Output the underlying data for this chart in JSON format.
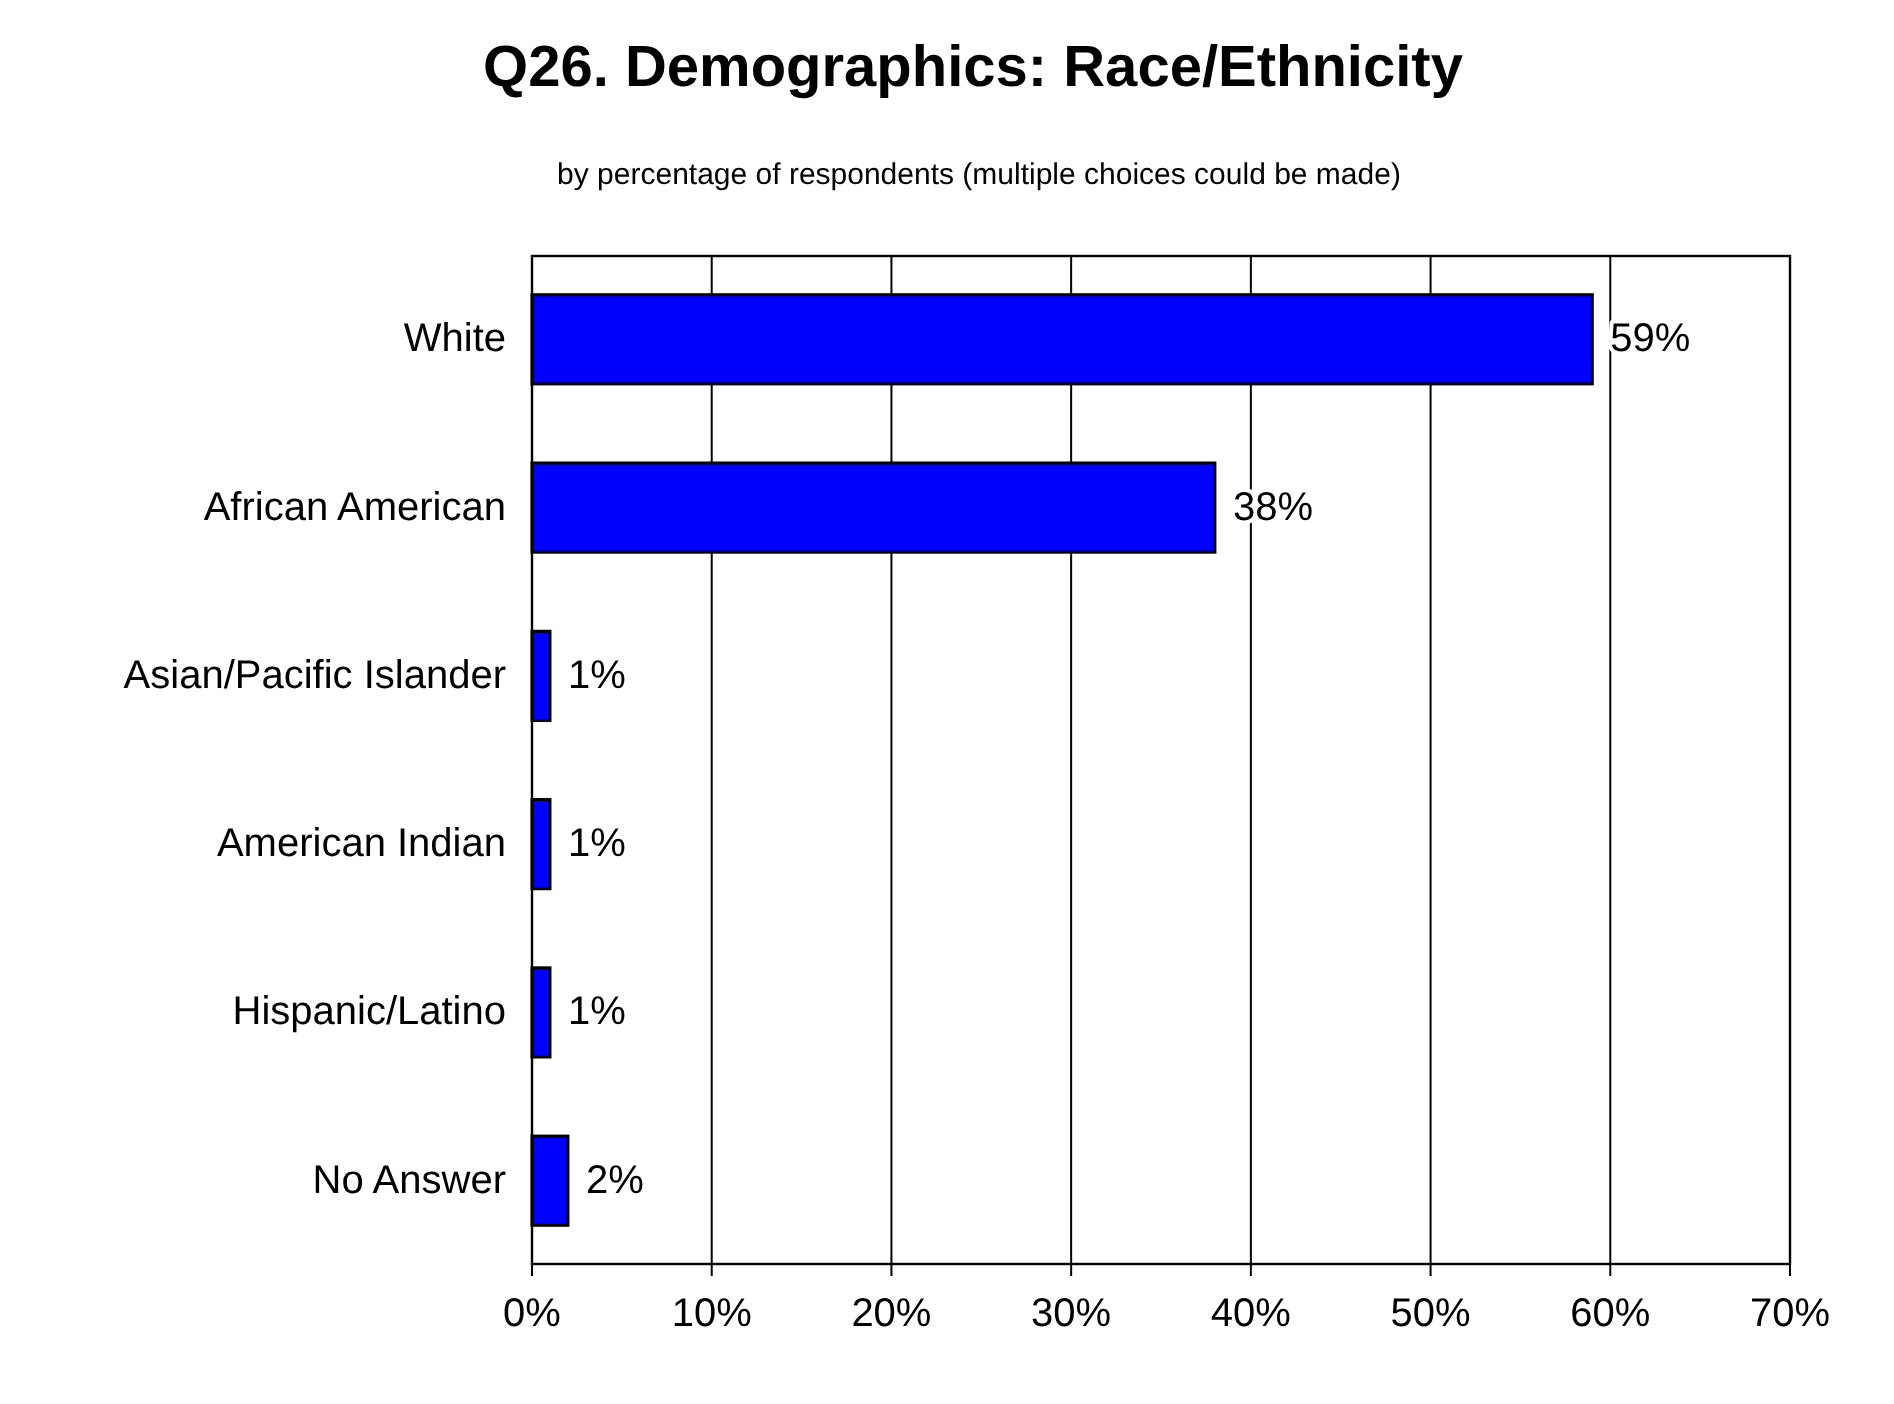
{
  "chart_data": {
    "type": "bar",
    "orientation": "horizontal",
    "title": "Q26. Demographics: Race/Ethnicity",
    "subtitle": "by percentage of respondents (multiple choices could be made)",
    "categories": [
      "White",
      "African American",
      "Asian/Pacific Islander",
      "American Indian",
      "Hispanic/Latino",
      "No Answer"
    ],
    "values": [
      59,
      38,
      1,
      1,
      1,
      2
    ],
    "color": "#0000ff",
    "xlim": [
      0,
      70
    ],
    "xticks": [
      {
        "value": 0,
        "label": "0%"
      },
      {
        "value": 10,
        "label": "10%"
      },
      {
        "value": 20,
        "label": "20%"
      },
      {
        "value": 30,
        "label": "30%"
      },
      {
        "value": 40,
        "label": "40%"
      },
      {
        "value": 50,
        "label": "50%"
      },
      {
        "value": 60,
        "label": "60%"
      },
      {
        "value": 70,
        "label": "70%"
      }
    ],
    "value_labels": [
      "59%",
      "38%",
      "1%",
      "1%",
      "1%",
      "2%"
    ],
    "grid": "x"
  }
}
